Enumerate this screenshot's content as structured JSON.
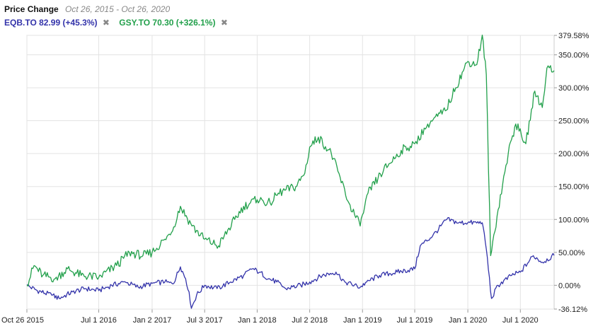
{
  "header": {
    "title": "Price Change",
    "range": "Oct 26, 2015 - Oct 26, 2020"
  },
  "legend": [
    {
      "label": "EQB.TO 82.99 (+45.3%)",
      "color": "#3333aa",
      "remove": "✖"
    },
    {
      "label": "GSY.TO 70.30 (+326.1%)",
      "color": "#22a04b",
      "remove": "✖"
    }
  ],
  "chart_data": {
    "type": "line",
    "x_ticks": [
      "Oct 26 2015",
      "Jul 1 2016",
      "Jan 2 2017",
      "Jul 3 2017",
      "Jan 1 2018",
      "Jul 2 2018",
      "Jan 1 2019",
      "Jul 1 2019",
      "Jan 1 2020",
      "Jul 1 2020"
    ],
    "y_ticks": [
      "379.58%",
      "350.00%",
      "300.00%",
      "250.00%",
      "200.00%",
      "150.00%",
      "100.00%",
      "50.00%",
      "0.00%",
      "-36.12%"
    ],
    "ylim": [
      -36.12,
      379.58
    ],
    "xlim": [
      "2015-10-26",
      "2020-10-26"
    ],
    "ylabel_unit": "%",
    "grid": true,
    "series": [
      {
        "name": "EQB.TO",
        "color": "#3333aa",
        "points": [
          [
            "2015-10-26",
            0
          ],
          [
            "2015-12-01",
            -8
          ],
          [
            "2016-01-20",
            -15
          ],
          [
            "2016-02-15",
            -20
          ],
          [
            "2016-04-01",
            -10
          ],
          [
            "2016-05-15",
            -5
          ],
          [
            "2016-07-01",
            -8
          ],
          [
            "2016-08-15",
            0
          ],
          [
            "2016-10-01",
            5
          ],
          [
            "2016-11-15",
            -3
          ],
          [
            "2017-01-02",
            3
          ],
          [
            "2017-02-15",
            5
          ],
          [
            "2017-03-15",
            2
          ],
          [
            "2017-04-10",
            28
          ],
          [
            "2017-04-28",
            10
          ],
          [
            "2017-05-10",
            -10
          ],
          [
            "2017-05-18",
            -35
          ],
          [
            "2017-06-05",
            -15
          ],
          [
            "2017-07-03",
            0
          ],
          [
            "2017-08-15",
            -5
          ],
          [
            "2017-10-01",
            5
          ],
          [
            "2017-11-15",
            15
          ],
          [
            "2017-12-15",
            25
          ],
          [
            "2018-01-10",
            20
          ],
          [
            "2018-02-10",
            10
          ],
          [
            "2018-03-10",
            5
          ],
          [
            "2018-04-10",
            -5
          ],
          [
            "2018-06-01",
            0
          ],
          [
            "2018-07-02",
            5
          ],
          [
            "2018-08-15",
            15
          ],
          [
            "2018-10-01",
            20
          ],
          [
            "2018-11-01",
            5
          ],
          [
            "2018-12-24",
            -3
          ],
          [
            "2019-01-15",
            5
          ],
          [
            "2019-03-01",
            15
          ],
          [
            "2019-05-01",
            20
          ],
          [
            "2019-07-01",
            25
          ],
          [
            "2019-07-20",
            60
          ],
          [
            "2019-09-01",
            75
          ],
          [
            "2019-10-20",
            100
          ],
          [
            "2019-12-01",
            95
          ],
          [
            "2020-01-01",
            95
          ],
          [
            "2020-02-20",
            95
          ],
          [
            "2020-03-05",
            55
          ],
          [
            "2020-03-23",
            -20
          ],
          [
            "2020-04-15",
            0
          ],
          [
            "2020-06-01",
            15
          ],
          [
            "2020-07-01",
            20
          ],
          [
            "2020-08-15",
            45
          ],
          [
            "2020-09-15",
            35
          ],
          [
            "2020-10-26",
            45.3
          ]
        ]
      },
      {
        "name": "GSY.TO",
        "color": "#22a04b",
        "points": [
          [
            "2015-10-26",
            0
          ],
          [
            "2015-11-20",
            30
          ],
          [
            "2015-12-20",
            15
          ],
          [
            "2016-02-01",
            10
          ],
          [
            "2016-03-15",
            25
          ],
          [
            "2016-05-01",
            15
          ],
          [
            "2016-07-01",
            12
          ],
          [
            "2016-09-01",
            30
          ],
          [
            "2016-10-15",
            50
          ],
          [
            "2016-12-01",
            45
          ],
          [
            "2017-01-02",
            50
          ],
          [
            "2017-02-15",
            70
          ],
          [
            "2017-03-10",
            80
          ],
          [
            "2017-04-10",
            120
          ],
          [
            "2017-05-20",
            90
          ],
          [
            "2017-07-03",
            70
          ],
          [
            "2017-08-20",
            60
          ],
          [
            "2017-10-15",
            100
          ],
          [
            "2017-11-15",
            120
          ],
          [
            "2018-01-01",
            130
          ],
          [
            "2018-02-15",
            125
          ],
          [
            "2018-03-15",
            140
          ],
          [
            "2018-05-15",
            150
          ],
          [
            "2018-06-15",
            170
          ],
          [
            "2018-07-02",
            210
          ],
          [
            "2018-08-01",
            225
          ],
          [
            "2018-09-15",
            200
          ],
          [
            "2018-11-15",
            125
          ],
          [
            "2018-12-24",
            90
          ],
          [
            "2019-01-20",
            140
          ],
          [
            "2019-03-15",
            175
          ],
          [
            "2019-05-15",
            205
          ],
          [
            "2019-07-01",
            215
          ],
          [
            "2019-08-15",
            245
          ],
          [
            "2019-10-15",
            265
          ],
          [
            "2019-11-20",
            300
          ],
          [
            "2019-12-20",
            330
          ],
          [
            "2020-01-01",
            340
          ],
          [
            "2020-02-01",
            335
          ],
          [
            "2020-02-20",
            380
          ],
          [
            "2020-03-05",
            320
          ],
          [
            "2020-03-20",
            45
          ],
          [
            "2020-04-15",
            115
          ],
          [
            "2020-05-20",
            200
          ],
          [
            "2020-06-15",
            245
          ],
          [
            "2020-07-20",
            215
          ],
          [
            "2020-08-20",
            295
          ],
          [
            "2020-09-15",
            270
          ],
          [
            "2020-10-01",
            330
          ],
          [
            "2020-10-26",
            326.1
          ]
        ]
      }
    ]
  }
}
